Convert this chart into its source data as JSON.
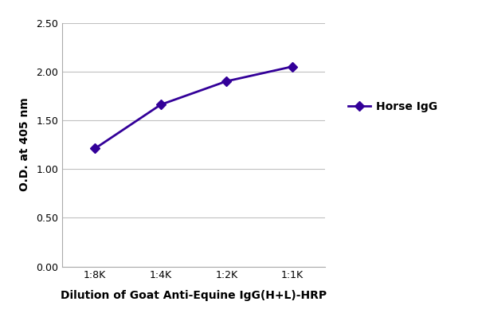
{
  "x_labels": [
    "1:8K",
    "1:4K",
    "1:2K",
    "1:1K"
  ],
  "x_values": [
    1,
    2,
    3,
    4
  ],
  "y_values": [
    1.21,
    1.66,
    1.9,
    2.05
  ],
  "line_color": "#330099",
  "marker_style": "D",
  "marker_size": 6,
  "marker_face_color": "#330099",
  "line_width": 2.0,
  "ylabel": "O.D. at 405 nm",
  "xlabel": "Dilution of Goat Anti-Equine IgG(H+L)-HRP",
  "legend_label": "Horse IgG",
  "ylim": [
    0.0,
    2.5
  ],
  "yticks": [
    0.0,
    0.5,
    1.0,
    1.5,
    2.0,
    2.5
  ],
  "grid_color": "#c0c0c0",
  "background_color": "#ffffff",
  "xlabel_fontsize": 10,
  "ylabel_fontsize": 10,
  "tick_fontsize": 9,
  "legend_fontsize": 10
}
